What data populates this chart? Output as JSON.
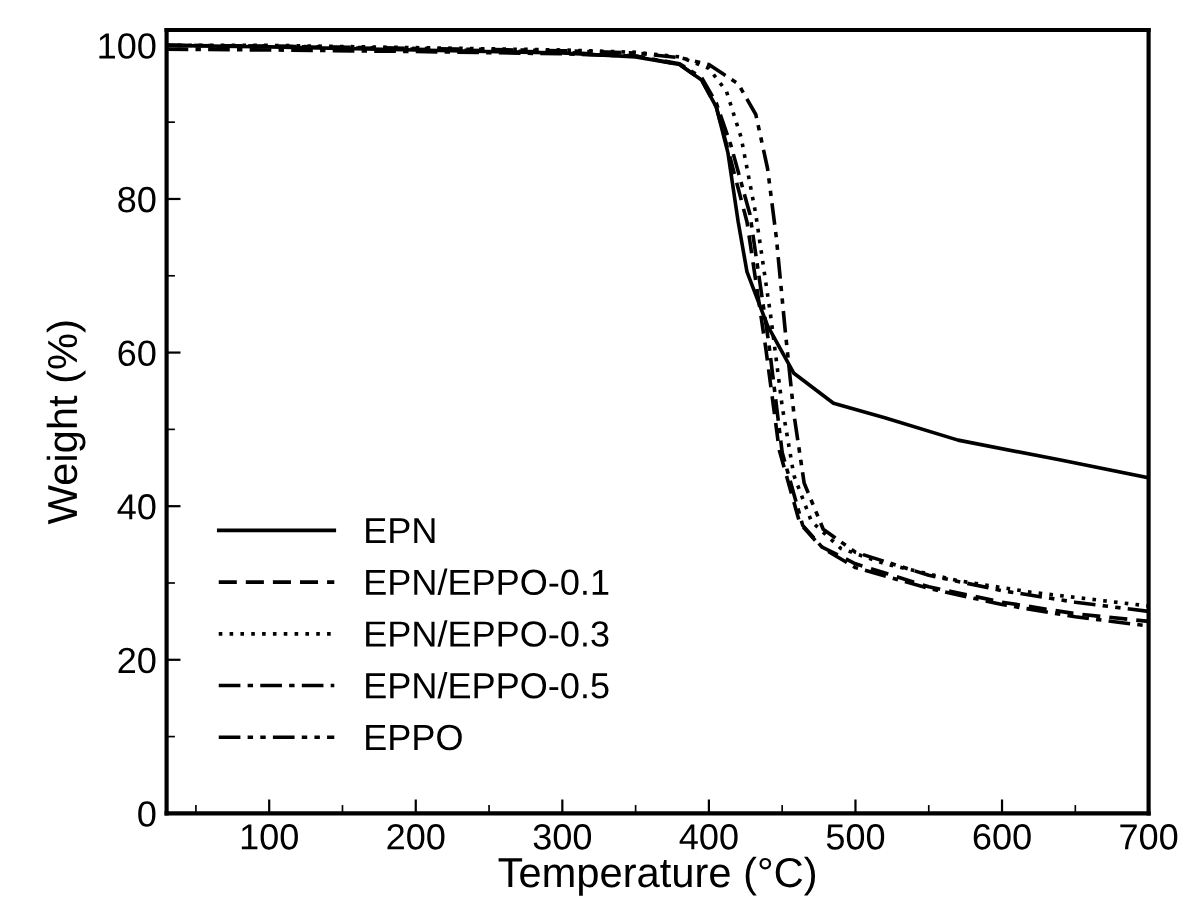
{
  "chart_data": {
    "type": "line",
    "xlabel": "Temperature (°C)",
    "ylabel": "Weight (%)",
    "xlim": [
      30,
      700
    ],
    "ylim": [
      0,
      102
    ],
    "xticks": [
      100,
      200,
      300,
      400,
      500,
      600,
      700
    ],
    "yticks": [
      0,
      20,
      40,
      60,
      80,
      100
    ],
    "grid": false,
    "legend": "bottom left",
    "marker": "none",
    "series": [
      {
        "name": "EPN",
        "color": "#000000",
        "line_style": "solid",
        "x": [
          30,
          100,
          200,
          300,
          350,
          380,
          395,
          405,
          413,
          420,
          426,
          440,
          458,
          485,
          520,
          570,
          640,
          700
        ],
        "values": [
          100,
          99.8,
          99.4,
          99,
          98.5,
          97.5,
          95.5,
          92,
          86,
          77,
          70.5,
          63.5,
          57.3,
          53.4,
          51.5,
          48.6,
          46,
          43.7
        ]
      },
      {
        "name": "EPN/EPPO-0.1",
        "color": "#000000",
        "line_style": "dashed",
        "x": [
          30,
          100,
          200,
          300,
          350,
          380,
          395,
          405,
          415,
          426,
          439,
          448,
          462,
          476,
          500,
          550,
          600,
          650,
          700
        ],
        "values": [
          100,
          99.9,
          99.5,
          99.1,
          98.6,
          97.5,
          95.5,
          92,
          85,
          77,
          60.3,
          47.3,
          37.8,
          34.8,
          32.5,
          29.5,
          27.5,
          26,
          25
        ]
      },
      {
        "name": "EPN/EPPO-0.3",
        "color": "#000000",
        "line_style": "dotted",
        "x": [
          30,
          100,
          200,
          300,
          350,
          380,
          400,
          412,
          422,
          432,
          442,
          450,
          458,
          470,
          490,
          520,
          570,
          620,
          700
        ],
        "values": [
          100,
          100,
          99.7,
          99.4,
          99.1,
          98.5,
          97,
          94,
          88,
          78,
          65,
          53,
          44,
          38,
          34.5,
          32.5,
          30.3,
          28.8,
          27
        ]
      },
      {
        "name": "EPN/EPPO-0.5",
        "color": "#000000",
        "line_style": "dashdot",
        "x": [
          30,
          100,
          200,
          300,
          350,
          380,
          395,
          405,
          415,
          428,
          441,
          450,
          464,
          478,
          500,
          550,
          600,
          650,
          700
        ],
        "values": [
          99.5,
          99.4,
          99.2,
          98.9,
          98.6,
          97.6,
          95.8,
          92.5,
          87,
          78,
          61,
          47,
          37.5,
          34.5,
          32,
          29.3,
          27.2,
          25.6,
          24.4
        ]
      },
      {
        "name": "EPPO",
        "color": "#000000",
        "line_style": "dashdotdot",
        "x": [
          30,
          100,
          200,
          300,
          350,
          380,
          400,
          420,
          432,
          440,
          446,
          452,
          458,
          465,
          478,
          500,
          550,
          600,
          650,
          700
        ],
        "values": [
          100,
          99.9,
          99.6,
          99.3,
          99,
          98.4,
          97.5,
          95,
          91,
          84,
          75,
          63,
          52,
          43,
          37,
          34,
          31,
          29,
          27.5,
          26.3
        ]
      }
    ]
  }
}
